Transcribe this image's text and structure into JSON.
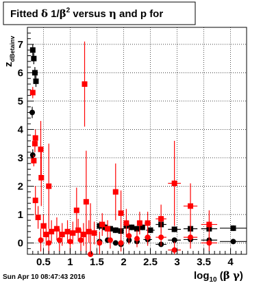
{
  "chart_data": {
    "type": "scatter",
    "title": "Fitted δ 1/β² versus η and p for",
    "xlabel": "log₁₀ (β γ)",
    "ylabel": "z_dBetainv",
    "timestamp": "Sun Apr 10 08:47:43 2016",
    "xlim": [
      0.2,
      4.3
    ],
    "ylim": [
      -0.4,
      7.6
    ],
    "x_ticks": [
      0.5,
      1,
      1.5,
      2,
      2.5,
      3,
      3.5,
      4
    ],
    "x_tick_labels": [
      "0.5",
      "1",
      "1.5",
      "2",
      "2.5",
      "3",
      "3.5",
      "4"
    ],
    "y_ticks": [
      0,
      1,
      2,
      3,
      4,
      5,
      6,
      7
    ],
    "y_tick_labels": [
      "0",
      "1",
      "2",
      "3",
      "4",
      "5",
      "6",
      "7"
    ],
    "grid": true,
    "colors": {
      "series_black": "#000000",
      "series_red": "#ff0000",
      "grid": "#000000",
      "frame": "#000000"
    },
    "series": [
      {
        "marker": "square",
        "color": "#000000",
        "points": [
          {
            "x": 1.55,
            "y": 0.6,
            "xerr": 0.05,
            "yerr": 0.15
          },
          {
            "x": 1.65,
            "y": 0.55,
            "xerr": 0.05,
            "yerr": 0.12
          },
          {
            "x": 1.75,
            "y": 0.5,
            "xerr": 0.05,
            "yerr": 0.1
          },
          {
            "x": 1.85,
            "y": 0.45,
            "xerr": 0.05,
            "yerr": 0.1
          },
          {
            "x": 1.95,
            "y": 0.42,
            "xerr": 0.05,
            "yerr": 0.1
          },
          {
            "x": 2.05,
            "y": 0.6,
            "xerr": 0.05,
            "yerr": 0.1
          },
          {
            "x": 2.15,
            "y": 0.55,
            "xerr": 0.05,
            "yerr": 0.1
          },
          {
            "x": 2.25,
            "y": 0.5,
            "xerr": 0.05,
            "yerr": 0.1
          },
          {
            "x": 2.35,
            "y": 0.55,
            "xerr": 0.05,
            "yerr": 0.1
          },
          {
            "x": 2.5,
            "y": 0.45,
            "xerr": 0.08,
            "yerr": 0.1
          },
          {
            "x": 2.7,
            "y": 0.65,
            "xerr": 0.1,
            "yerr": 0.1
          },
          {
            "x": 2.95,
            "y": 0.48,
            "xerr": 0.12,
            "yerr": 0.1
          },
          {
            "x": 3.25,
            "y": 0.5,
            "xerr": 0.13,
            "yerr": 0.1
          },
          {
            "x": 3.6,
            "y": 0.5,
            "xerr": 0.15,
            "yerr": 0.1
          },
          {
            "x": 4.05,
            "y": 0.52,
            "xerr": 0.25,
            "yerr": 0.1
          },
          {
            "x": 0.3,
            "y": 6.8,
            "xerr": 0.0,
            "yerr": 0.2
          },
          {
            "x": 0.32,
            "y": 6.5,
            "xerr": 0.0,
            "yerr": 0.2
          },
          {
            "x": 0.34,
            "y": 6.0,
            "xerr": 0.0,
            "yerr": 0.2
          },
          {
            "x": 0.36,
            "y": 5.7,
            "xerr": 0.0,
            "yerr": 0.2
          }
        ]
      },
      {
        "marker": "circle",
        "color": "#000000",
        "points": [
          {
            "x": 1.55,
            "y": 0.05,
            "xerr": 0.05,
            "yerr": 0.05
          },
          {
            "x": 1.7,
            "y": 0.1,
            "xerr": 0.05,
            "yerr": 0.05
          },
          {
            "x": 1.85,
            "y": 0.0,
            "xerr": 0.05,
            "yerr": 0.05
          },
          {
            "x": 1.95,
            "y": -0.05,
            "xerr": 0.05,
            "yerr": 0.05
          },
          {
            "x": 2.1,
            "y": 0.1,
            "xerr": 0.05,
            "yerr": 0.05
          },
          {
            "x": 2.25,
            "y": 0.05,
            "xerr": 0.05,
            "yerr": 0.05
          },
          {
            "x": 2.45,
            "y": 0.12,
            "xerr": 0.08,
            "yerr": 0.05
          },
          {
            "x": 2.7,
            "y": -0.05,
            "xerr": 0.1,
            "yerr": 0.05
          },
          {
            "x": 2.95,
            "y": 0.1,
            "xerr": 0.12,
            "yerr": 0.05
          },
          {
            "x": 3.25,
            "y": 0.12,
            "xerr": 0.13,
            "yerr": 0.05
          },
          {
            "x": 3.6,
            "y": 0.1,
            "xerr": 0.15,
            "yerr": 0.05
          },
          {
            "x": 4.05,
            "y": 0.05,
            "xerr": 0.25,
            "yerr": 0.05
          },
          {
            "x": 0.29,
            "y": 4.6,
            "xerr": 0.0,
            "yerr": 0.2
          },
          {
            "x": 0.3,
            "y": 3.1,
            "xerr": 0.0,
            "yerr": 0.2
          }
        ]
      },
      {
        "marker": "square",
        "color": "#ff0000",
        "points": [
          {
            "x": 0.35,
            "y": 3.7,
            "xerr": 0.01,
            "yerr": 0.3
          },
          {
            "x": 0.34,
            "y": 3.5,
            "xerr": 0.01,
            "yerr": 0.3
          },
          {
            "x": 0.45,
            "y": 3.3,
            "xerr": 0.02,
            "yerr": 1.0
          },
          {
            "x": 0.46,
            "y": 2.3,
            "xerr": 0.02,
            "yerr": 1.0
          },
          {
            "x": 0.6,
            "y": 2.0,
            "xerr": 0.02,
            "yerr": 1.5
          },
          {
            "x": 1.27,
            "y": 5.6,
            "xerr": 0.02,
            "yerr": 1.5
          },
          {
            "x": 1.3,
            "y": 1.45,
            "xerr": 0.02,
            "yerr": 1.8
          },
          {
            "x": 1.85,
            "y": 1.8,
            "xerr": 0.04,
            "yerr": 1.0
          },
          {
            "x": 1.95,
            "y": 1.05,
            "xerr": 0.04,
            "yerr": 0.8
          },
          {
            "x": 1.12,
            "y": 1.15,
            "xerr": 0.02,
            "yerr": 0.8
          },
          {
            "x": 2.05,
            "y": 0.7,
            "xerr": 0.05,
            "yerr": 0.5
          },
          {
            "x": 2.3,
            "y": 0.7,
            "xerr": 0.05,
            "yerr": 0.4
          },
          {
            "x": 2.45,
            "y": 0.7,
            "xerr": 0.06,
            "yerr": 0.4
          },
          {
            "x": 2.7,
            "y": 0.85,
            "xerr": 0.1,
            "yerr": 0.5
          },
          {
            "x": 2.95,
            "y": 2.1,
            "xerr": 0.12,
            "yerr": 1.5
          },
          {
            "x": 3.25,
            "y": 1.3,
            "xerr": 0.13,
            "yerr": 0.8
          },
          {
            "x": 3.6,
            "y": 0.65,
            "xerr": 0.15,
            "yerr": 0.5
          },
          {
            "x": 0.35,
            "y": 1.5,
            "xerr": 0.01,
            "yerr": 0.5
          },
          {
            "x": 0.4,
            "y": 0.9,
            "xerr": 0.01,
            "yerr": 0.4
          },
          {
            "x": 0.5,
            "y": 0.6,
            "xerr": 0.01,
            "yerr": 0.4
          },
          {
            "x": 0.55,
            "y": 0.3,
            "xerr": 0.01,
            "yerr": 0.4
          },
          {
            "x": 0.65,
            "y": 0.4,
            "xerr": 0.01,
            "yerr": 0.4
          },
          {
            "x": 0.75,
            "y": 0.5,
            "xerr": 0.01,
            "yerr": 0.4
          },
          {
            "x": 0.85,
            "y": 0.3,
            "xerr": 0.01,
            "yerr": 0.4
          },
          {
            "x": 0.95,
            "y": 0.4,
            "xerr": 0.01,
            "yerr": 0.4
          },
          {
            "x": 1.05,
            "y": 0.35,
            "xerr": 0.01,
            "yerr": 0.4
          },
          {
            "x": 1.15,
            "y": 0.45,
            "xerr": 0.01,
            "yerr": 0.4
          },
          {
            "x": 1.25,
            "y": 0.3,
            "xerr": 0.01,
            "yerr": 0.4
          },
          {
            "x": 1.35,
            "y": 0.4,
            "xerr": 0.01,
            "yerr": 0.4
          },
          {
            "x": 1.45,
            "y": 0.35,
            "xerr": 0.01,
            "yerr": 0.4
          },
          {
            "x": 1.6,
            "y": 0.65,
            "xerr": 0.02,
            "yerr": 0.4
          },
          {
            "x": 1.7,
            "y": 0.5,
            "xerr": 0.02,
            "yerr": 0.3
          },
          {
            "x": 0.3,
            "y": 5.3,
            "xerr": 0.0,
            "yerr": 0.2
          },
          {
            "x": 0.32,
            "y": 2.9,
            "xerr": 0.0,
            "yerr": 0.2
          }
        ]
      },
      {
        "marker": "circle",
        "color": "#ff0000",
        "points": [
          {
            "x": 1.38,
            "y": -0.4,
            "xerr": 0.02,
            "yerr": 1.8
          },
          {
            "x": 1.55,
            "y": 0.0,
            "xerr": 0.03,
            "yerr": 0.4
          },
          {
            "x": 1.75,
            "y": 0.1,
            "xerr": 0.03,
            "yerr": 0.3
          },
          {
            "x": 1.95,
            "y": 0.0,
            "xerr": 0.04,
            "yerr": 0.3
          },
          {
            "x": 2.1,
            "y": 0.25,
            "xerr": 0.05,
            "yerr": 0.3
          },
          {
            "x": 2.25,
            "y": 0.15,
            "xerr": 0.05,
            "yerr": 0.3
          },
          {
            "x": 2.45,
            "y": 0.2,
            "xerr": 0.06,
            "yerr": 0.3
          },
          {
            "x": 2.7,
            "y": 0.2,
            "xerr": 0.1,
            "yerr": 0.3
          },
          {
            "x": 2.95,
            "y": -0.25,
            "xerr": 0.12,
            "yerr": 0.3
          },
          {
            "x": 3.25,
            "y": 0.2,
            "xerr": 0.13,
            "yerr": 0.4
          },
          {
            "x": 3.6,
            "y": 0.0,
            "xerr": 0.15,
            "yerr": 0.3
          },
          {
            "x": 0.45,
            "y": 0.1,
            "xerr": 0.01,
            "yerr": 0.4
          },
          {
            "x": 0.6,
            "y": 0.0,
            "xerr": 0.01,
            "yerr": 0.4
          },
          {
            "x": 0.8,
            "y": 0.1,
            "xerr": 0.01,
            "yerr": 0.4
          },
          {
            "x": 1.0,
            "y": 0.05,
            "xerr": 0.01,
            "yerr": 0.4
          },
          {
            "x": 1.2,
            "y": 0.1,
            "xerr": 0.01,
            "yerr": 0.4
          }
        ]
      }
    ]
  }
}
